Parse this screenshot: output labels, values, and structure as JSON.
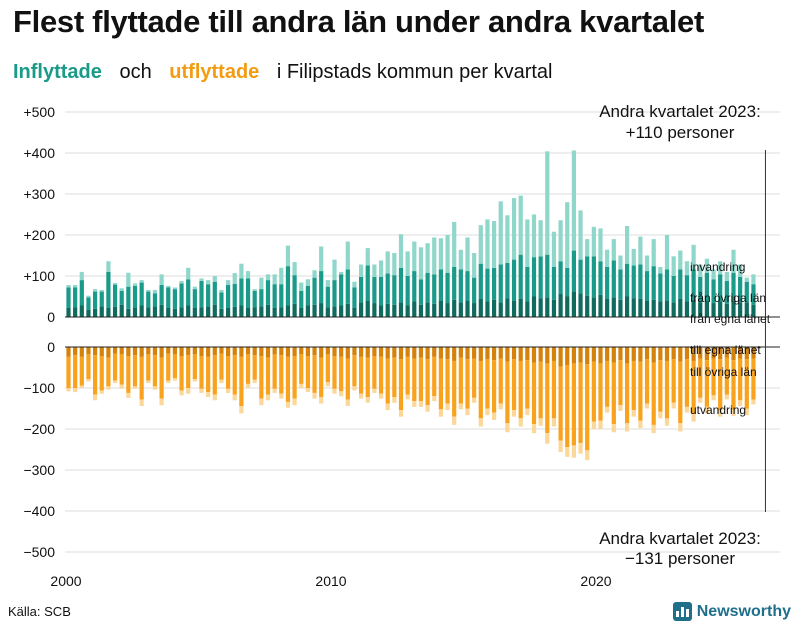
{
  "title": "Flest flyttade till andra län under andra kvartalet",
  "subtitle": {
    "in_label": "Inflyttade",
    "and_word": "och",
    "out_label": "utflyttade",
    "rest": "i Filipstads  kommun  per  kvartal"
  },
  "source": "Källa: SCB",
  "brand": "Newsworthy",
  "colors": {
    "in_dark": "#0f6b5e",
    "in_mid": "#1a9a88",
    "in_light": "#8fd6cb",
    "out_dark": "#d4820b",
    "out_mid": "#f8a21d",
    "out_light": "#fbd79a",
    "grid": "#dddddd",
    "axis": "#222222"
  },
  "annotations": {
    "top": [
      "Andra kvartalet 2023:",
      "+110 personer"
    ],
    "bottom": [
      "Andra kvartalet 2023:",
      "−131 personer"
    ]
  },
  "chart_data": {
    "type": "bar",
    "title": "Flest flyttade till andra län under andra kvartalet",
    "xlabel": "",
    "ylabel": "",
    "x_ticks": [
      "2000",
      "2010",
      "2020"
    ],
    "y_ticks_top": [
      "+500",
      "+400",
      "+300",
      "+200",
      "+100",
      "0"
    ],
    "y_ticks_bottom": [
      "0",
      "−100",
      "−200",
      "−300",
      "−400",
      "−500"
    ],
    "ylim": [
      -500,
      500
    ],
    "start": "2000 Q1",
    "series_labels": {
      "in": [
        "invandring",
        "från övriga län",
        "från egna länet"
      ],
      "out": [
        "till egna länet",
        "till övriga län",
        "utvandring"
      ]
    },
    "inflows": {
      "from_own_county": [
        22,
        24,
        28,
        18,
        20,
        26,
        22,
        25,
        30,
        20,
        22,
        28,
        24,
        26,
        30,
        22,
        20,
        24,
        28,
        22,
        24,
        26,
        30,
        20,
        22,
        25,
        28,
        22,
        24,
        26,
        30,
        22,
        24,
        28,
        32,
        22,
        28,
        30,
        34,
        24,
        26,
        28,
        32,
        22,
        36,
        40,
        34,
        28,
        32,
        30,
        36,
        28,
        38,
        30,
        36,
        32,
        40,
        34,
        42,
        36,
        40,
        34,
        44,
        38,
        42,
        36,
        46,
        40,
        44,
        38,
        50,
        46,
        48,
        42,
        56,
        50,
        62,
        58,
        52,
        48,
        54,
        44,
        48,
        42,
        50,
        46,
        44,
        40,
        42,
        38,
        40,
        36,
        44,
        38,
        42,
        36,
        40,
        34,
        38,
        32,
        40,
        36,
        36,
        30
      ],
      "from_other_counties": [
        50,
        48,
        62,
        30,
        42,
        36,
        88,
        54,
        34,
        54,
        54,
        56,
        38,
        32,
        48,
        50,
        48,
        58,
        64,
        46,
        64,
        54,
        56,
        40,
        56,
        56,
        66,
        72,
        40,
        42,
        60,
        58,
        56,
        96,
        70,
        42,
        48,
        66,
        78,
        50,
        64,
        76,
        84,
        50,
        62,
        86,
        64,
        70,
        74,
        72,
        84,
        72,
        74,
        62,
        72,
        72,
        76,
        74,
        80,
        80,
        72,
        62,
        86,
        80,
        78,
        92,
        86,
        100,
        108,
        84,
        96,
        102,
        104,
        80,
        80,
        70,
        100,
        82,
        96,
        100,
        82,
        78,
        90,
        74,
        80,
        80,
        84,
        72,
        82,
        68,
        76,
        64,
        72,
        64,
        74,
        62,
        68,
        58,
        66,
        56,
        68,
        62,
        50,
        50
      ],
      "immigration": [
        6,
        6,
        20,
        4,
        6,
        4,
        26,
        4,
        6,
        34,
        6,
        6,
        4,
        8,
        26,
        4,
        4,
        6,
        28,
        6,
        6,
        10,
        14,
        6,
        12,
        26,
        36,
        18,
        4,
        28,
        14,
        24,
        40,
        50,
        32,
        20,
        16,
        18,
        60,
        16,
        50,
        6,
        68,
        14,
        30,
        42,
        30,
        40,
        54,
        54,
        82,
        60,
        72,
        78,
        72,
        90,
        76,
        92,
        110,
        48,
        82,
        60,
        94,
        120,
        114,
        154,
        116,
        150,
        144,
        116,
        104,
        88,
        252,
        86,
        100,
        160,
        244,
        120,
        42,
        72,
        80,
        42,
        52,
        34,
        92,
        40,
        68,
        38,
        66,
        16,
        84,
        48,
        46,
        34,
        60,
        30,
        34,
        24,
        32,
        22,
        56,
        30,
        10,
        24
      ]
    },
    "outflows": {
      "to_own_county": [
        24,
        20,
        24,
        18,
        20,
        22,
        26,
        16,
        18,
        22,
        20,
        24,
        18,
        20,
        26,
        16,
        18,
        22,
        20,
        18,
        22,
        24,
        20,
        16,
        22,
        20,
        24,
        18,
        20,
        22,
        26,
        18,
        20,
        24,
        22,
        18,
        22,
        20,
        26,
        18,
        22,
        24,
        28,
        20,
        24,
        26,
        22,
        24,
        28,
        26,
        30,
        24,
        28,
        26,
        30,
        24,
        28,
        30,
        34,
        26,
        30,
        28,
        34,
        30,
        32,
        28,
        36,
        30,
        34,
        32,
        38,
        36,
        40,
        34,
        48,
        44,
        40,
        38,
        42,
        36,
        40,
        34,
        38,
        32,
        40,
        34,
        36,
        30,
        38,
        32,
        34,
        30,
        36,
        30,
        34,
        28,
        32,
        28,
        30,
        26,
        32,
        28,
        30,
        28
      ],
      "to_other_counties": [
        76,
        80,
        70,
        60,
        96,
        84,
        70,
        66,
        74,
        90,
        76,
        104,
        64,
        76,
        100,
        66,
        58,
        84,
        80,
        60,
        80,
        86,
        96,
        64,
        80,
        96,
        120,
        72,
        60,
        104,
        90,
        84,
        94,
        110,
        104,
        72,
        78,
        92,
        96,
        68,
        80,
        84,
        100,
        76,
        90,
        96,
        80,
        90,
        110,
        96,
        124,
        92,
        104,
        106,
        112,
        96,
        124,
        108,
        136,
        112,
        120,
        96,
        140,
        120,
        128,
        110,
        150,
        124,
        140,
        118,
        150,
        138,
        170,
        140,
        180,
        200,
        200,
        196,
        210,
        146,
        140,
        112,
        150,
        110,
        146,
        120,
        144,
        108,
        152,
        126,
        140,
        106,
        150,
        116,
        130,
        96,
        114,
        90,
        124,
        90,
        120,
        102,
        120,
        100
      ],
      "immigration_pad": [
        8,
        10,
        6,
        6,
        14,
        8,
        8,
        6,
        10,
        12,
        6,
        16,
        6,
        8,
        16,
        6,
        6,
        12,
        14,
        6,
        10,
        12,
        14,
        8,
        10,
        14,
        18,
        10,
        8,
        16,
        14,
        10,
        12,
        14,
        16,
        10,
        10,
        14,
        16,
        10,
        12,
        12,
        16,
        10,
        12,
        14,
        10,
        12,
        16,
        14,
        16,
        12,
        14,
        14,
        16,
        12,
        18,
        16,
        20,
        14,
        16,
        12,
        20,
        16,
        18,
        14,
        22,
        16,
        20,
        16,
        22,
        18,
        26,
        20,
        28,
        24,
        30,
        26,
        24,
        18,
        20,
        14,
        20,
        14,
        20,
        16,
        18,
        12,
        20,
        16,
        18,
        14,
        20,
        14,
        18,
        12,
        16,
        12,
        16,
        12,
        16,
        14,
        16,
        12
      ]
    }
  }
}
